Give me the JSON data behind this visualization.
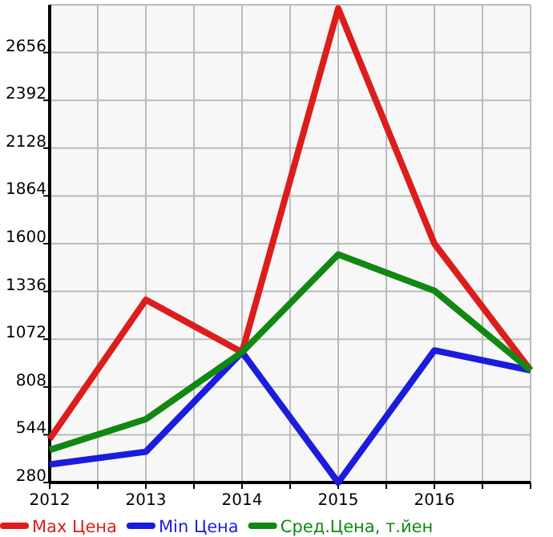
{
  "chart_data": {
    "type": "line",
    "x": [
      2012,
      2013,
      2014,
      2015,
      2016,
      2017
    ],
    "series": [
      {
        "name": "Max Цена",
        "color": "#dd1c1c",
        "values": [
          520,
          1290,
          1000,
          2900,
          1600,
          900
        ]
      },
      {
        "name": "Min Цена",
        "color": "#1c1cdd",
        "values": [
          380,
          450,
          1000,
          280,
          1010,
          900
        ]
      },
      {
        "name": "Сред.Цена, т.йен",
        "color": "#118811",
        "values": [
          460,
          630,
          1000,
          1540,
          1340,
          900
        ]
      }
    ],
    "xlim": [
      2012,
      2017
    ],
    "xticks": [
      2012,
      {
        "value": 2012.5,
        "label": null
      },
      2013,
      {
        "value": 2013.5,
        "label": null
      },
      2014,
      {
        "value": 2014.5,
        "label": null
      },
      2015,
      {
        "value": 2015.5,
        "label": null
      },
      2016,
      {
        "value": 2016.5,
        "label": null
      },
      {
        "value": 2017,
        "label": null
      }
    ],
    "ylim": [
      280,
      2920
    ],
    "yticks": [
      280,
      544,
      808,
      1072,
      1336,
      1600,
      1864,
      2128,
      2392,
      2656
    ],
    "grid": true,
    "legend": "bottom",
    "marker": "none",
    "line_style": "solid"
  }
}
